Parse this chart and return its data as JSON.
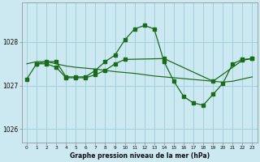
{
  "title": "Graphe pression niveau de la mer (hPa)",
  "bg_color": "#cce8f0",
  "grid_color": "#99ccd9",
  "line_color": "#1a6b1a",
  "ylim": [
    1025.7,
    1028.9
  ],
  "xlim": [
    -0.5,
    23.5
  ],
  "yticks": [
    1026,
    1027,
    1028
  ],
  "series": [
    {
      "x": [
        1,
        2,
        3,
        4,
        5,
        6,
        7,
        8,
        9,
        10,
        11,
        12,
        13,
        14,
        15,
        16,
        17,
        18,
        19,
        20,
        21,
        22,
        23
      ],
      "y": [
        1027.5,
        1027.55,
        1027.55,
        1027.2,
        1027.2,
        1027.2,
        1027.35,
        1027.55,
        1027.7,
        1028.05,
        1028.3,
        1028.38,
        1028.3,
        1027.55,
        1027.1,
        1026.75,
        1026.6,
        1026.55,
        1026.8,
        1027.05,
        1027.5,
        1027.6,
        1027.62
      ],
      "marker": true,
      "linestyle": "solid"
    },
    {
      "x": [
        0,
        1,
        2,
        3,
        4,
        5,
        6,
        7,
        8,
        9,
        10,
        11,
        12,
        13,
        14,
        15,
        16,
        17,
        18,
        19,
        20,
        21,
        22,
        23
      ],
      "y": [
        1027.5,
        1027.55,
        1027.55,
        1027.5,
        1027.45,
        1027.42,
        1027.4,
        1027.38,
        1027.35,
        1027.32,
        1027.3,
        1027.28,
        1027.25,
        1027.22,
        1027.2,
        1027.18,
        1027.16,
        1027.14,
        1027.12,
        1027.1,
        1027.08,
        1027.1,
        1027.15,
        1027.2
      ],
      "marker": false,
      "linestyle": "solid"
    },
    {
      "x": [
        0,
        1,
        2,
        3,
        4,
        5,
        6,
        7,
        8,
        9,
        10,
        14,
        19,
        22,
        23
      ],
      "y": [
        1027.15,
        1027.5,
        1027.5,
        1027.42,
        1027.18,
        1027.18,
        1027.18,
        1027.25,
        1027.35,
        1027.5,
        1027.6,
        1027.62,
        1027.1,
        1027.58,
        1027.62
      ],
      "marker": true,
      "linestyle": "solid"
    }
  ]
}
